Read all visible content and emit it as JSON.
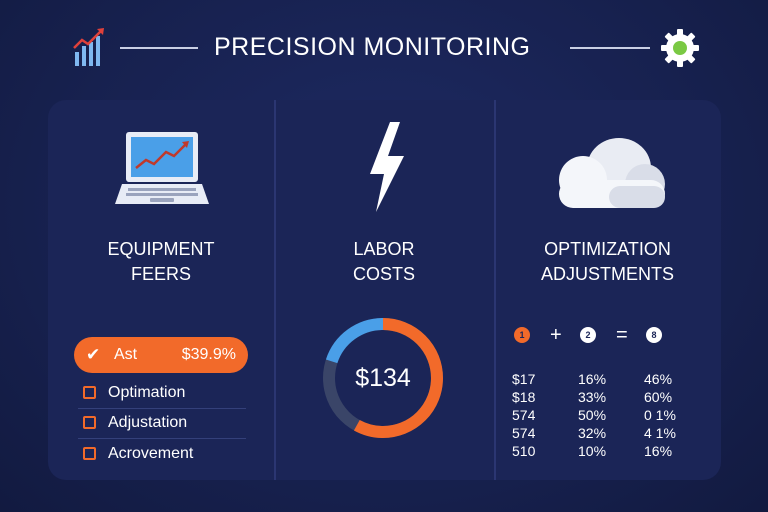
{
  "header": {
    "title": "PRECISION MONITORING",
    "left_icon": "bar-chart-growth-icon",
    "right_icon": "gear-icon"
  },
  "colors": {
    "background": "#17214f",
    "panel": "#1b2557",
    "accent_orange": "#f26a2a",
    "accent_blue": "#4a9fe8",
    "accent_green": "#7ac943"
  },
  "columns": [
    {
      "icon": "laptop-chart-icon",
      "title_line1": "EQUIPMENT",
      "title_line2": "FEERS",
      "highlight": {
        "label": "Ast",
        "value": "$39.9%"
      },
      "items": [
        {
          "label": "Optimation"
        },
        {
          "label": "Adjustation"
        },
        {
          "label": "Acrovement"
        }
      ]
    },
    {
      "icon": "lightning-bolt-icon",
      "title_line1": "LABOR",
      "title_line2": "COSTS",
      "donut_value": "$134",
      "donut_progress": 0.58
    },
    {
      "icon": "cloud-icon",
      "title_line1": "OPTIMIZATION",
      "title_line2": "ADJUSTMENTS",
      "equation": {
        "a": "1",
        "op1": "+",
        "b": "2",
        "op2": "=",
        "c": "8"
      },
      "table": [
        [
          "$17",
          "16%",
          "46%"
        ],
        [
          "$18",
          "33%",
          "60%"
        ],
        [
          "574",
          "50%",
          "0 1%"
        ],
        [
          "574",
          "32%",
          "4 1%"
        ],
        [
          "510",
          "10%",
          "16%"
        ]
      ]
    }
  ]
}
